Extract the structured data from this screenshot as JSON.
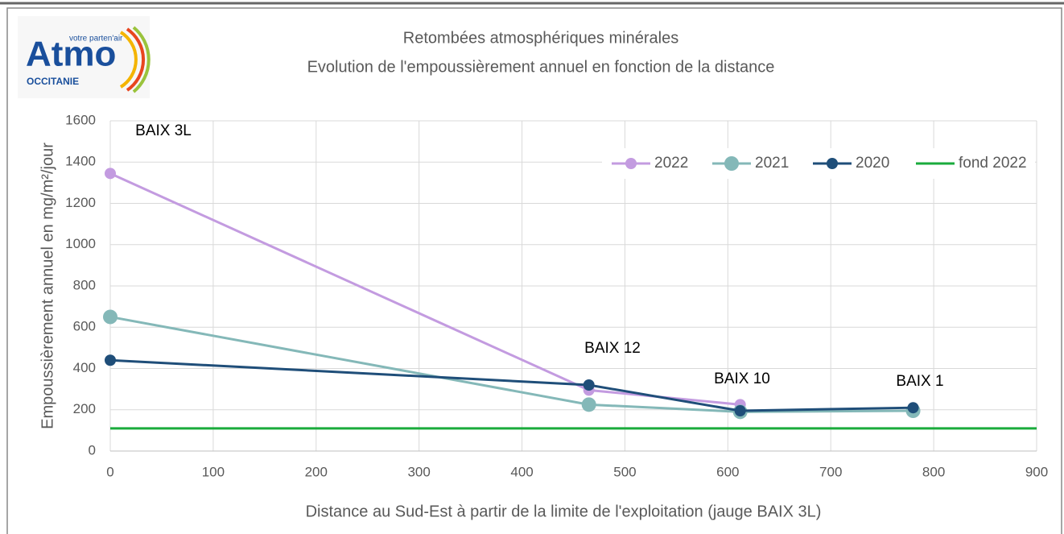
{
  "logo": {
    "brand": "Atmo",
    "tagline": "votre parten'air",
    "region": "OCCITANIE"
  },
  "chart_data": {
    "type": "line",
    "title": "Retombées atmosphériques  minérales",
    "subtitle": "Evolution  de l'empoussièrement  annuel  en fonction  de la distance",
    "x_label": "Distance au Sud-Est à partir de la limite de l'exploitation (jauge BAIX 3L)",
    "y_label": "Empoussièrement annuel en mg/m²/jour",
    "x": [
      0,
      465,
      612,
      780
    ],
    "point_labels": [
      "BAIX 3L",
      "BAIX 12",
      "BAIX 10",
      "BAIX 1"
    ],
    "series": [
      {
        "name": "2022",
        "color": "#c39be0",
        "values": [
          1345,
          295,
          225,
          null
        ]
      },
      {
        "name": "2021",
        "color": "#84b8b8",
        "values": [
          650,
          225,
          190,
          195
        ]
      },
      {
        "name": "2020",
        "color": "#1f4e79",
        "values": [
          440,
          320,
          195,
          210
        ]
      },
      {
        "name": "fond 2022",
        "color": "#1aab3c",
        "x": [
          0,
          900
        ],
        "values": [
          110,
          110
        ]
      }
    ],
    "xlim": [
      0,
      900
    ],
    "xticks": [
      0,
      100,
      200,
      300,
      400,
      500,
      600,
      700,
      800,
      900
    ],
    "ylim": [
      0,
      1600
    ],
    "yticks": [
      0,
      200,
      400,
      600,
      800,
      1000,
      1200,
      1400,
      1600
    ],
    "grid": true,
    "legend": "top-right"
  }
}
